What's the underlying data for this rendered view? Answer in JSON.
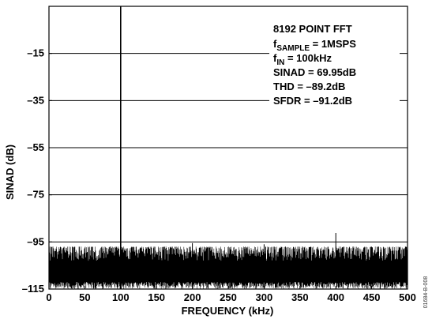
{
  "chart_data": {
    "type": "line",
    "title": "",
    "xlabel": "FREQUENCY (kHz)",
    "ylabel": "SINAD (dB)",
    "xlim": [
      0,
      500
    ],
    "ylim": [
      -115,
      5
    ],
    "x_ticks": [
      0,
      50,
      100,
      150,
      200,
      250,
      300,
      350,
      400,
      450,
      500
    ],
    "y_ticks": [
      -15,
      -35,
      -55,
      -75,
      -95,
      -115
    ],
    "grid": true,
    "annotation": {
      "line1": "8192 POINT FFT",
      "line2_prefix": "f",
      "line2_sub": "SAMPLE",
      "line2_suffix": " = 1MSPS",
      "line3_prefix": "f",
      "line3_sub": "IN",
      "line3_suffix": " = 100kHz",
      "line4": "SINAD = 69.95dB",
      "line5": "THD = –89.2dB",
      "line6": "SFDR = –91.2dB"
    },
    "series": [
      {
        "signal_peak": {
          "x": 100,
          "y": 5
        },
        "noise_floor_range": [
          -115,
          -97
        ],
        "spurs": [
          {
            "x": 200,
            "y": -95.5
          },
          {
            "x": 300,
            "y": -96
          },
          {
            "x": 400,
            "y": -91.2
          }
        ]
      }
    ]
  },
  "figure_code": "01684-B-008"
}
